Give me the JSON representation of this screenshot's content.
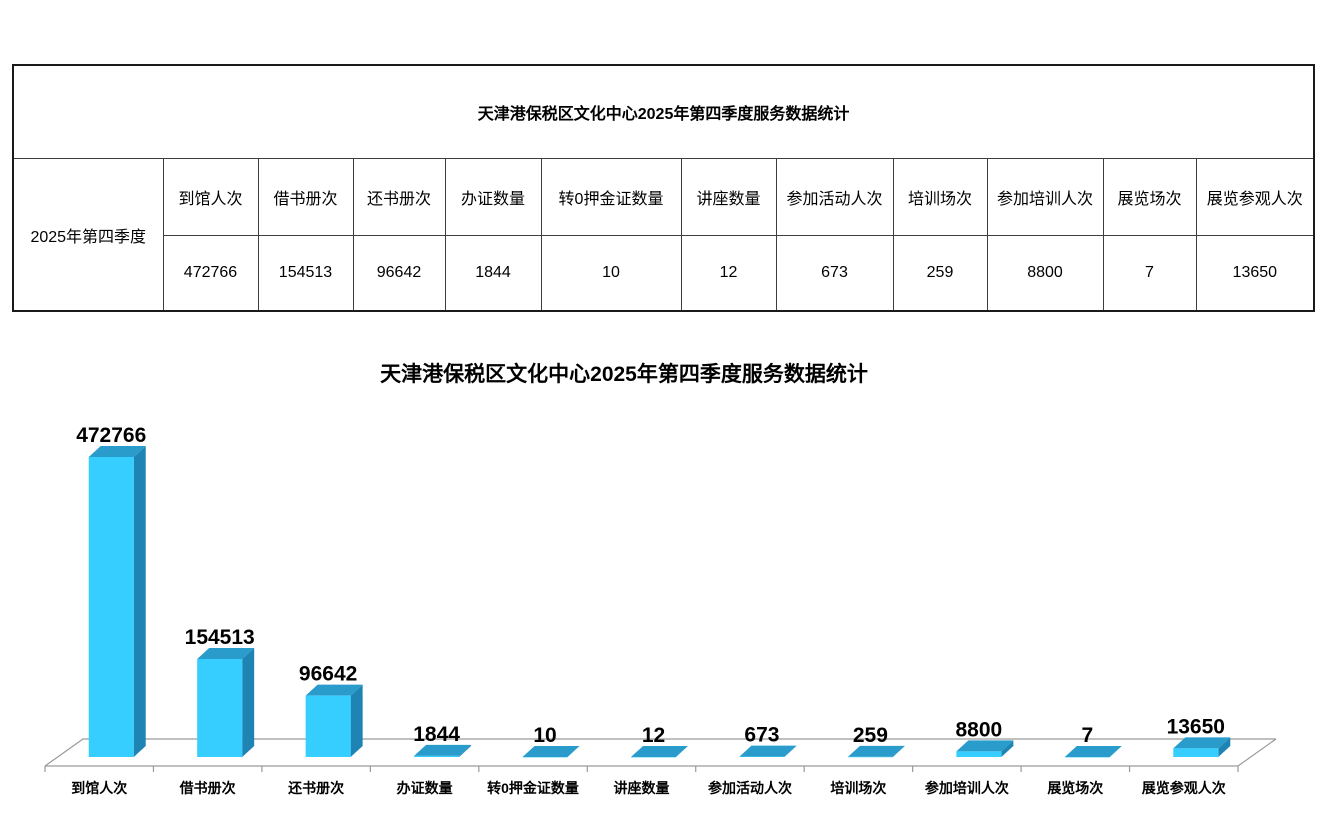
{
  "table": {
    "title": "天津港保税区文化中心2025年第四季度服务数据统计",
    "row_label": "2025年第四季度",
    "columns": [
      {
        "header": "到馆人次",
        "value": "472766"
      },
      {
        "header": "借书册次",
        "value": "154513"
      },
      {
        "header": "还书册次",
        "value": "96642"
      },
      {
        "header": "办证数量",
        "value": "1844"
      },
      {
        "header": "转0押金证数量",
        "value": "10"
      },
      {
        "header": "讲座数量",
        "value": "12"
      },
      {
        "header": "参加活动人次",
        "value": "673"
      },
      {
        "header": "培训场次",
        "value": "259"
      },
      {
        "header": "参加培训人次",
        "value": "8800"
      },
      {
        "header": "展览场次",
        "value": "7"
      },
      {
        "header": "展览参观人次",
        "value": "13650"
      }
    ]
  },
  "chart_data": {
    "type": "bar",
    "style": "3d-box",
    "title": "天津港保税区文化中心2025年第四季度服务数据统计",
    "series_name": "2025年第四季度",
    "categories": [
      "到馆人次",
      "借书册次",
      "还书册次",
      "办证数量",
      "转0押金证数量",
      "讲座数量",
      "参加活动人次",
      "培训场次",
      "参加培训人次",
      "展览场次",
      "展览参观人次"
    ],
    "values": [
      472766,
      154513,
      96642,
      1844,
      10,
      12,
      673,
      259,
      8800,
      7,
      13650
    ],
    "data_labels": true,
    "legend": false,
    "grid": false,
    "y_axis_visible": false,
    "ylim": [
      0,
      472766
    ],
    "colors": {
      "bar_front": "#36ceff",
      "bar_top": "#299ccc",
      "bar_side": "#1e84b4",
      "axis_line": "#9a9a9a",
      "label": "#000000"
    }
  }
}
